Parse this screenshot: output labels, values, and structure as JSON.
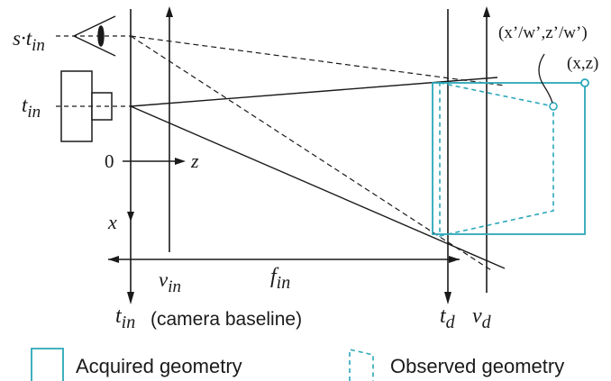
{
  "labels": {
    "s_t_in": "s·t",
    "s_t_in_sub": "in",
    "t_in_left": "t",
    "t_in_left_sub": "in",
    "origin": "0",
    "z_axis": "z",
    "x_axis": "x",
    "v_in": "v",
    "v_in_sub": "in",
    "f_in": "f",
    "f_in_sub": "in",
    "t_in_bottom": "t",
    "t_in_bottom_sub": "in",
    "camera_baseline": "(camera baseline)",
    "t_d": "t",
    "t_d_sub": "d",
    "v_d": "v",
    "v_d_sub": "d",
    "observed_point": "(x’/w’,z’/w’)",
    "acquired_point": "(x,z)"
  },
  "legend": {
    "acquired": "Acquired geometry",
    "observed": "Observed geometry"
  },
  "colors": {
    "line": "#1a1a1a",
    "geometry": "#2aa7b8"
  }
}
